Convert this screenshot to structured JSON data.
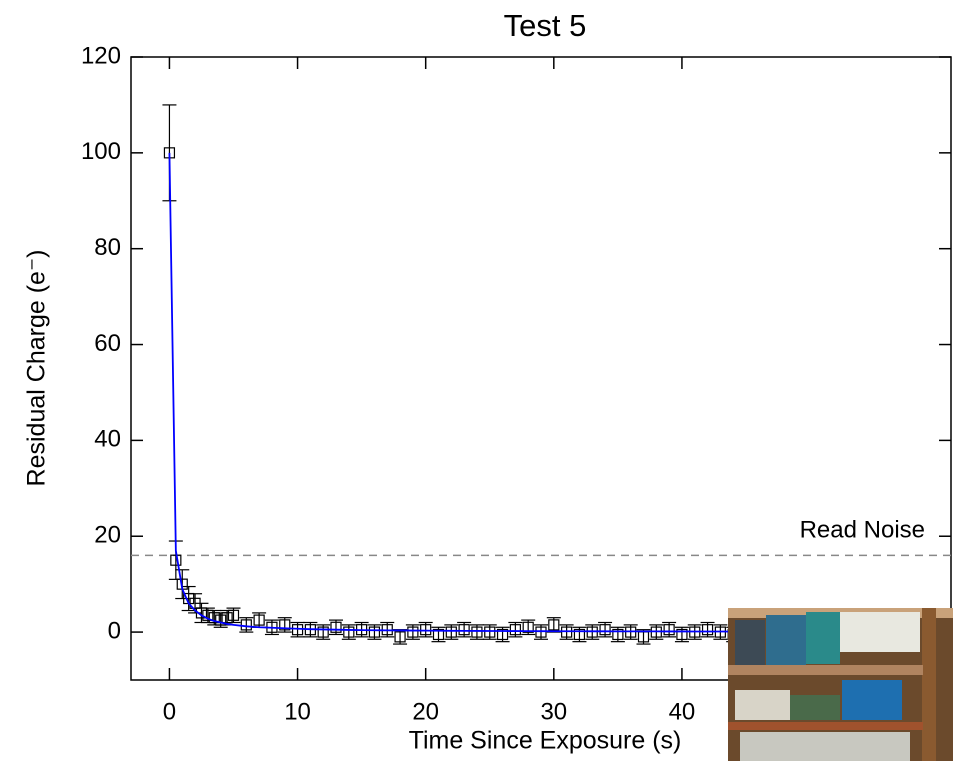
{
  "chart_data": {
    "type": "scatter",
    "title": "Test 5",
    "x_label": "Time Since Exposure (s)",
    "y_label": "Residual Charge (e⁻)",
    "x": [
      0,
      0.5,
      1,
      1.5,
      2,
      2.5,
      3,
      3.5,
      4,
      4.5,
      5,
      6,
      7,
      8,
      9,
      10,
      11,
      12,
      13,
      14,
      15,
      16,
      17,
      18,
      19,
      20,
      21,
      22,
      23,
      24,
      25,
      26,
      27,
      28,
      29,
      30,
      31,
      32,
      33,
      34,
      35,
      36,
      37,
      38,
      39,
      40,
      41,
      42,
      43,
      44
    ],
    "series": [
      {
        "color": "#000000",
        "values": [
          100,
          15,
          10,
          7,
          6,
          4,
          3.5,
          3,
          2.5,
          3,
          3.5,
          1.5,
          2.5,
          1,
          1.5,
          0.5,
          0.5,
          0,
          1,
          0,
          0.5,
          0,
          0.5,
          -1,
          0,
          0.5,
          -0.5,
          0,
          0.5,
          0,
          0,
          -0.5,
          0.5,
          1,
          0,
          1.5,
          0,
          -0.5,
          0,
          0.5,
          -0.5,
          0,
          -1,
          0,
          0.5,
          -0.5,
          0,
          0.5,
          0,
          -0.5
        ],
        "errors": [
          10,
          4,
          3,
          2.5,
          2,
          2,
          1.5,
          1.5,
          1.5,
          1.5,
          1.5,
          1.5,
          1.5,
          1.5,
          1.5,
          1.5,
          1.5,
          1.5,
          1.5,
          1.5,
          1.5,
          1.5,
          1.5,
          1.5,
          1.5,
          1.5,
          1.5,
          1.5,
          1.5,
          1.5,
          1.5,
          1.5,
          1.5,
          1.5,
          1.5,
          1.5,
          1.5,
          1.5,
          1.5,
          1.5,
          1.5,
          1.5,
          1.5,
          1.5,
          1.5,
          1.5,
          1.5,
          1.5,
          1.5,
          1.5
        ]
      },
      {
        "color": "#0000ff",
        "line": true,
        "values": [
          100,
          17,
          9,
          6,
          4.5,
          3.5,
          2.8,
          2.3,
          2,
          1.7,
          1.5,
          1.2,
          1.0,
          0.9,
          0.8,
          0.7,
          0.6,
          0.55,
          0.5,
          0.45,
          0.4,
          0.38,
          0.36,
          0.34,
          0.32,
          0.3,
          0.28,
          0.26,
          0.25,
          0.24,
          0.23,
          0.22,
          0.21,
          0.2,
          0.19,
          0.18,
          0.17,
          0.17,
          0.16,
          0.16,
          0.15,
          0.15,
          0.14,
          0.14,
          0.13,
          0.13,
          0.12,
          0.12,
          0.12,
          0.11
        ]
      }
    ],
    "reference_line": {
      "value": 16,
      "label": "Read Noise",
      "color": "#888888"
    },
    "xlim": [
      -3,
      61
    ],
    "ylim": [
      -10,
      120
    ],
    "xticks": [
      0,
      10,
      20,
      30,
      40
    ],
    "yticks": [
      0,
      20,
      40,
      60,
      80,
      100,
      120
    ]
  }
}
